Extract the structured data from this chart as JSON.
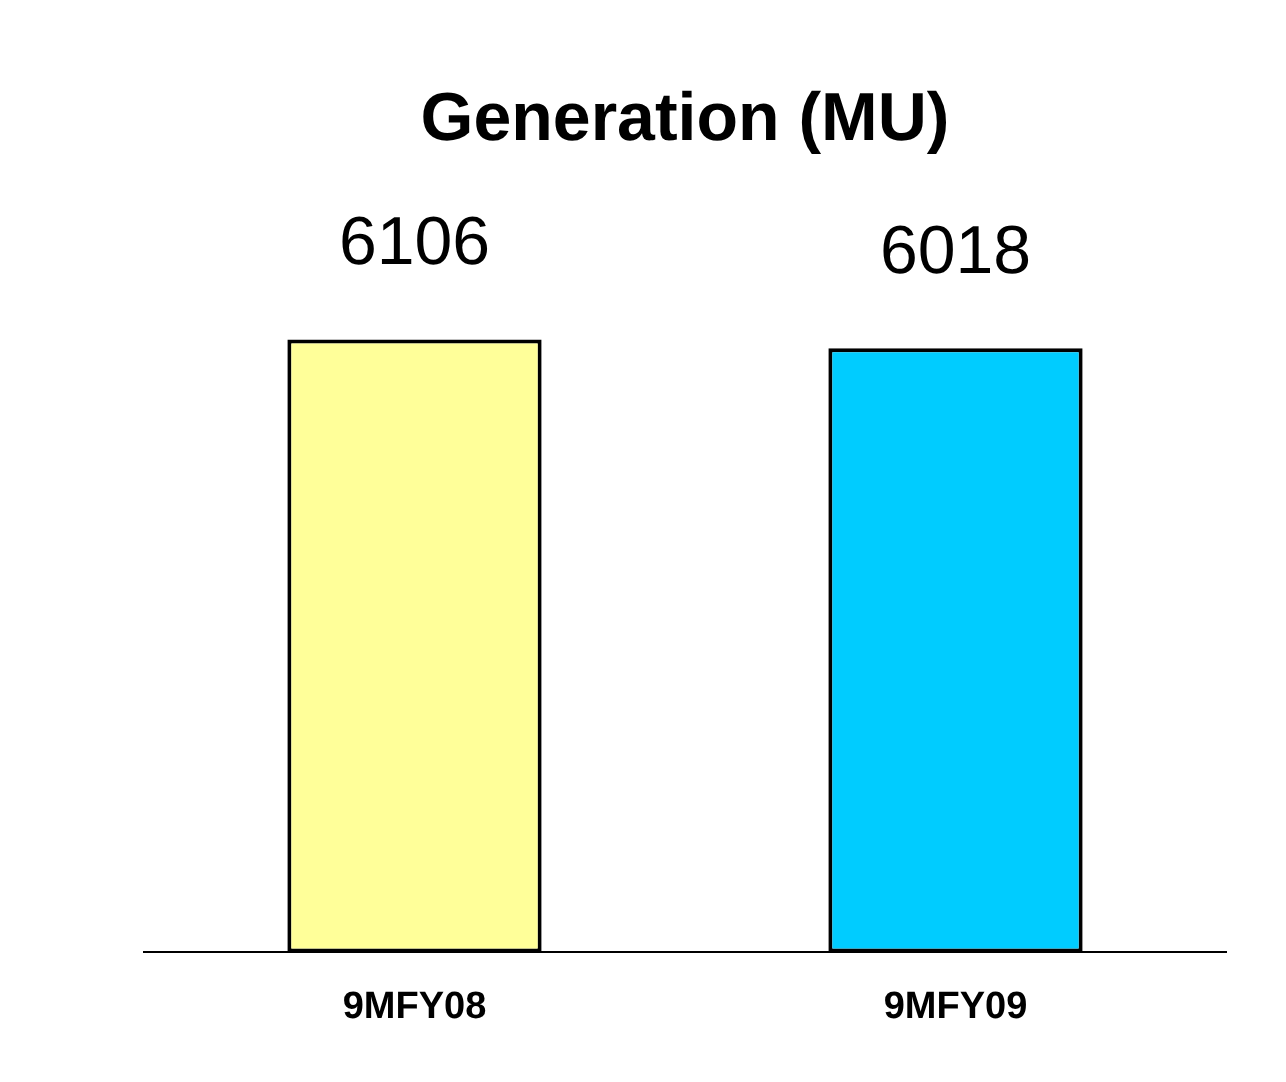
{
  "chart_data": {
    "type": "bar",
    "title": "Generation (MU)",
    "categories": [
      "9MFY08",
      "9MFY09"
    ],
    "values": [
      6106,
      6018
    ],
    "colors": [
      "#ffff99",
      "#00ccff"
    ],
    "data_labels": true,
    "grid": false,
    "legend": false
  }
}
